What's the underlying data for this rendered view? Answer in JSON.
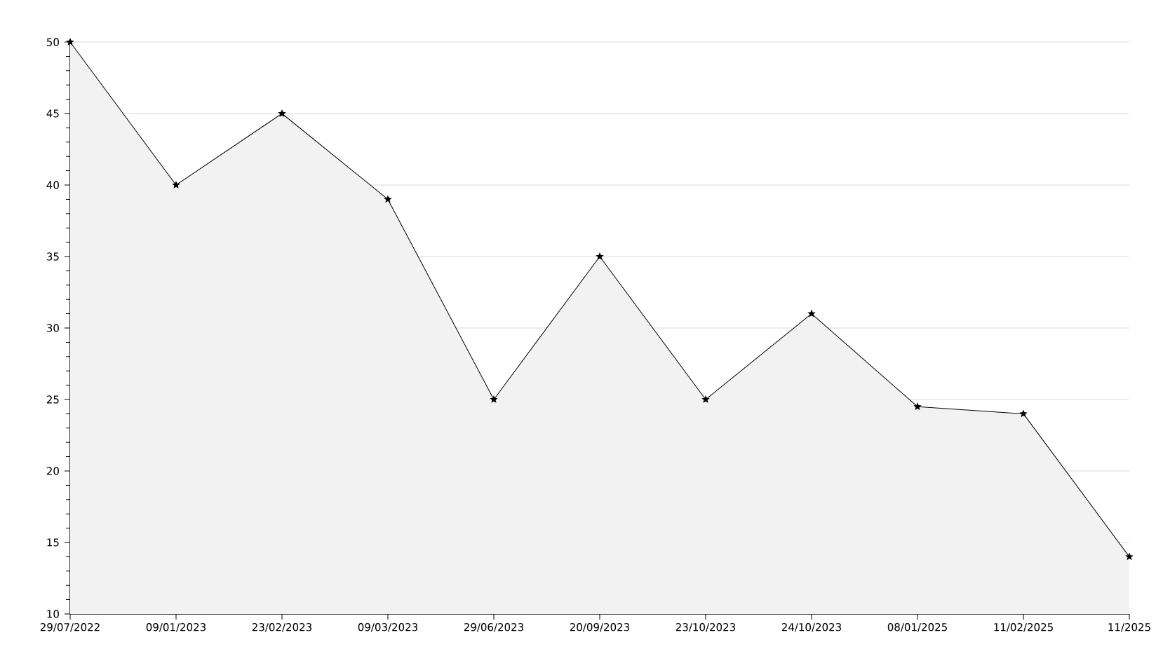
{
  "chart_data": {
    "type": "area",
    "categories": [
      "29/07/2022",
      "09/01/2023",
      "23/02/2023",
      "09/03/2023",
      "29/06/2023",
      "20/09/2023",
      "23/10/2023",
      "24/10/2023",
      "08/01/2025",
      "11/02/2025",
      "11/2025"
    ],
    "series": [
      {
        "color": "#000000",
        "values": [
          50,
          40,
          45,
          39,
          25,
          35,
          25,
          31,
          24.5,
          24,
          14
        ]
      }
    ],
    "ylim": [
      10,
      50
    ],
    "yticks": [
      10,
      15,
      20,
      25,
      30,
      35,
      40,
      45,
      50
    ],
    "grid": "y",
    "marker": "star",
    "line_style": "solid"
  }
}
